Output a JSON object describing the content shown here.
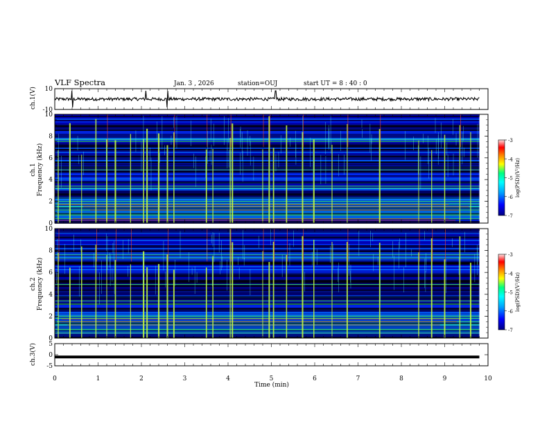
{
  "header": {
    "title": "VLF Spectra",
    "date": "Jan. 3 , 2026",
    "station": "station=OUJ",
    "start_ut": "start UT =  8 : 40 : 0"
  },
  "colors": {
    "frame": "#000000",
    "background": "#ffffff",
    "spec_background": "#00008b",
    "colormap": [
      "#000080",
      "#0000ff",
      "#00a0ff",
      "#00ffff",
      "#00ff80",
      "#ffff00",
      "#ff8000",
      "#ff0000",
      "#ffe0e0"
    ]
  },
  "chart_data": [
    {
      "type": "line",
      "id": "ch1-waveform",
      "ylabel": "ch.1(V)",
      "ylim": [
        -10,
        10
      ],
      "yticks": [
        -10,
        10
      ],
      "xlim": [
        0,
        10
      ],
      "description_values": {
        "baseline": 0,
        "noise_amplitude": 1.5,
        "spikes_at_min": [
          0.4,
          2.1,
          2.6,
          5.1
        ]
      }
    },
    {
      "type": "heatmap",
      "id": "ch1-spectrogram",
      "ylabel": "ch.1 Frequency (kHz)",
      "ylim": [
        0,
        10
      ],
      "yticks": [
        0,
        2,
        4,
        6,
        8,
        10
      ],
      "xlim": [
        0,
        10
      ],
      "data_end_min": 9.8,
      "colorbar": {
        "label": "log(PSD)(V²/Hz)",
        "range": [
          -7,
          -3
        ],
        "ticks": [
          -7,
          -6,
          -5,
          -4,
          -3
        ]
      },
      "features": {
        "green_bands_khz": [
          0.4,
          0.75,
          1.2,
          1.5,
          1.75,
          2.0,
          3.2,
          3.4,
          4.9,
          7.5,
          7.7
        ],
        "red_bands_khz": [
          0.25,
          0.4,
          1.2,
          1.5,
          1.7
        ],
        "sferic_times_min": [
          0.08,
          0.35,
          0.62,
          0.95,
          1.2,
          1.4,
          1.75,
          2.05,
          2.13,
          2.4,
          2.6,
          2.75,
          3.5,
          3.65,
          4.05,
          4.1,
          4.8,
          4.95,
          5.05,
          5.35,
          5.72,
          5.98,
          6.4,
          6.75,
          7.5,
          8.4,
          8.7,
          9.0,
          9.35,
          9.6
        ]
      }
    },
    {
      "type": "heatmap",
      "id": "ch2-spectrogram",
      "ylabel": "ch.2 Frequency (kHz)",
      "ylim": [
        0,
        10
      ],
      "yticks": [
        0,
        2,
        4,
        6,
        8,
        10
      ],
      "xlim": [
        0,
        10
      ],
      "data_end_min": 9.8,
      "colorbar": {
        "label": "log(PSD)(V²/Hz)",
        "range": [
          -7,
          -3
        ],
        "ticks": [
          -7,
          -6,
          -5,
          -4,
          -3
        ]
      },
      "features": {
        "green_bands_khz": [
          0.45,
          0.8,
          1.2,
          1.5,
          1.8,
          2.0,
          3.1,
          3.4,
          4.9,
          7.3,
          7.6
        ],
        "red_bands_khz": [
          1.2,
          1.5,
          1.75
        ],
        "sferic_times_min": [
          0.08,
          0.35,
          0.62,
          0.95,
          1.2,
          1.4,
          1.75,
          2.05,
          2.13,
          2.4,
          2.6,
          2.75,
          3.5,
          3.65,
          4.05,
          4.1,
          4.8,
          4.95,
          5.05,
          5.35,
          5.72,
          5.98,
          6.4,
          6.75,
          7.5,
          8.4,
          8.7,
          9.0,
          9.35,
          9.6
        ]
      }
    },
    {
      "type": "line",
      "id": "ch3-waveform",
      "ylabel": "ch.3(V)",
      "ylim": [
        -5,
        5
      ],
      "yticks": [
        -5,
        0,
        5
      ],
      "xlim": [
        0,
        10
      ],
      "description_values": {
        "constant_level": -1.0
      }
    }
  ],
  "xaxis": {
    "label": "Time (min)",
    "ticks": [
      0,
      1,
      2,
      3,
      4,
      5,
      6,
      7,
      8,
      9,
      10
    ]
  }
}
